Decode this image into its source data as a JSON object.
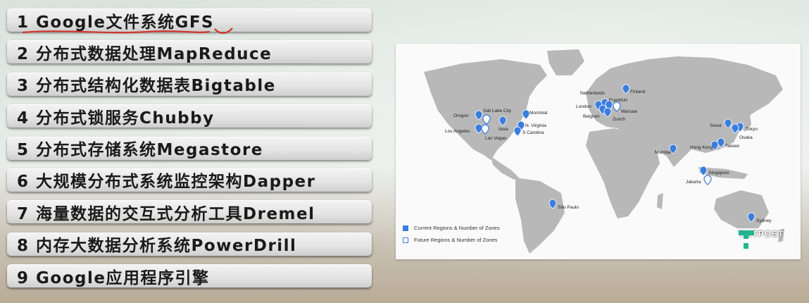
{
  "items": [
    {
      "label": "1 Google文件系统GFS"
    },
    {
      "label": "2 分布式数据处理MapReduce"
    },
    {
      "label": "3 分布式结构化数据表Bigtable"
    },
    {
      "label": "4 分布式锁服务Chubby"
    },
    {
      "label": "5 分布式存储系统Megastore"
    },
    {
      "label": "6 大规模分布式系统监控架构Dapper"
    },
    {
      "label": "7 海量数据的交互式分析工具Dremel"
    },
    {
      "label": "8 内存大数据分析系统PowerDrill"
    },
    {
      "label": "9 Google应用程序引擎"
    }
  ],
  "map": {
    "legend": {
      "current": "Current Regions & Number of Zones",
      "future": "Future Regions & Number of Zones"
    },
    "colors": {
      "current": "#3b7ddd",
      "future": "#ffffff",
      "land": "#b8b8b8"
    },
    "cities": {
      "oregon": "Oregon",
      "salt_lake_city": "Salt Lake City",
      "montreal": "Montréal",
      "los_angeles": "Los Angeles",
      "iowa": "Iowa",
      "n_virginia": "N. Virginia",
      "s_carolina": "S Carolina",
      "las_vegas": "Las Vegas",
      "netherlands": "Netherlands",
      "finland": "Finland",
      "london": "London",
      "frankfurt": "Frankfurt",
      "warsaw": "Warsaw",
      "belgium": "Belgium",
      "zurich": "Zurich",
      "seoul": "Seoul",
      "tokyo": "Tokyo",
      "osaka": "Osaka",
      "hong_kong": "Hong Kong",
      "taiwan": "Taiwan",
      "mumbai": "Mumbai",
      "singapore": "Singapore",
      "jakarta": "Jakarta",
      "sao_paulo": "São Paulo",
      "sydney": "Sydney"
    },
    "logo_text": "TMTPOST"
  }
}
